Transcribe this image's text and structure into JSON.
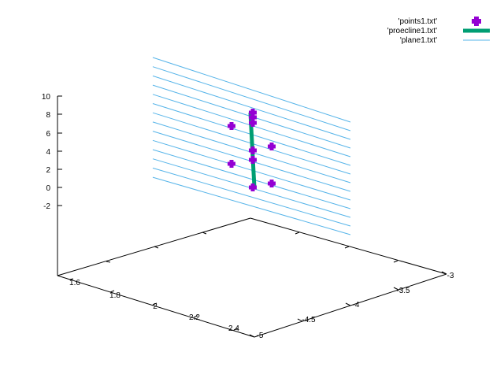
{
  "chart_data": {
    "type": "scatter",
    "projection": "3d",
    "title": "",
    "xlabel": "",
    "ylabel": "",
    "zlabel": "",
    "x_ticks": [
      "1.6",
      "1.8",
      "2",
      "2.2",
      "2.4"
    ],
    "y_ticks": [
      "-5",
      "-4.5",
      "-4",
      "-3.5",
      "-3"
    ],
    "z_ticks": [
      "10",
      "8",
      "6",
      "4",
      "2",
      "0",
      "-2"
    ],
    "legend": {
      "placement": "top-right",
      "entries": [
        {
          "label": "'points1.txt'",
          "color": "#9400d3",
          "style": "points"
        },
        {
          "label": "'proecline1.txt'",
          "color": "#009e73",
          "style": "thick-line"
        },
        {
          "label": "'plane1.txt'",
          "color": "#56b4e9",
          "style": "line"
        }
      ]
    },
    "series": [
      {
        "name": "'points1.txt'",
        "type": "points",
        "screen_values": [
          [
            321,
            143
          ],
          [
            321,
            149
          ],
          [
            321,
            156
          ],
          [
            294,
            160
          ],
          [
            345,
            186
          ],
          [
            321,
            191
          ],
          [
            321,
            203
          ],
          [
            294,
            208
          ],
          [
            345,
            233
          ],
          [
            321,
            238
          ]
        ]
      },
      {
        "name": "'proecline1.txt'",
        "type": "line",
        "screen_values": [
          [
            318,
            143
          ],
          [
            323,
            238
          ]
        ]
      },
      {
        "name": "'plane1.txt'",
        "type": "line-family",
        "line_count": 14
      }
    ]
  }
}
